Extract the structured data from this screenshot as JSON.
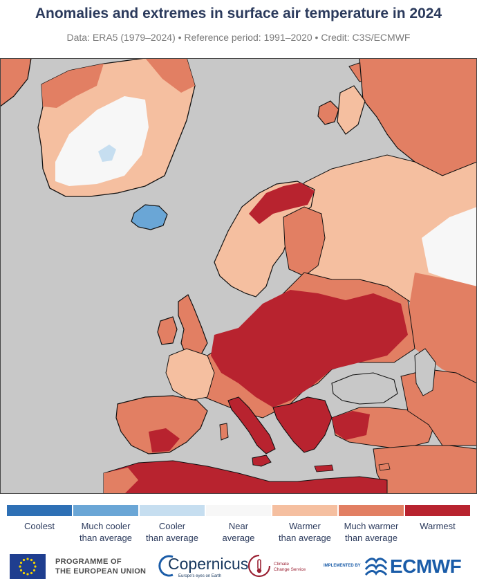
{
  "title": "Anomalies and extremes in surface air temperature in 2024",
  "subtitle": "Data: ERA5 (1979–2024) • Reference period: 1991–2020 • Credit: C3S/ECMWF",
  "legend": [
    {
      "label_line1": "Coolest",
      "label_line2": "",
      "color": "#2e70b5"
    },
    {
      "label_line1": "Much cooler",
      "label_line2": "than average",
      "color": "#6aa6d6"
    },
    {
      "label_line1": "Cooler",
      "label_line2": "than average",
      "color": "#c6def0"
    },
    {
      "label_line1": "Near",
      "label_line2": "average",
      "color": "#f7f7f7"
    },
    {
      "label_line1": "Warmer",
      "label_line2": "than average",
      "color": "#f5bfa0"
    },
    {
      "label_line1": "Much warmer",
      "label_line2": "than average",
      "color": "#e27f63"
    },
    {
      "label_line1": "Warmest",
      "label_line2": "",
      "color": "#b8232f"
    }
  ],
  "map": {
    "sea_color": "#c8c8c8",
    "coast_color": "#111111",
    "region_categories": [
      {
        "region": "Greenland interior",
        "category": "Near average"
      },
      {
        "region": "Greenland west coast",
        "category": "Much warmer than average"
      },
      {
        "region": "Greenland east coast",
        "category": "Warmer than average"
      },
      {
        "region": "Iceland",
        "category": "Much cooler than average"
      },
      {
        "region": "Svalbard",
        "category": "Much warmer than average"
      },
      {
        "region": "British Isles",
        "category": "Much warmer than average"
      },
      {
        "region": "Scandinavia",
        "category": "Warmer than average"
      },
      {
        "region": "Northern Finland / Norway",
        "category": "Warmest"
      },
      {
        "region": "Iberian Peninsula",
        "category": "Much warmer than average"
      },
      {
        "region": "Central and Eastern Europe",
        "category": "Warmest"
      },
      {
        "region": "Balkans and Turkey",
        "category": "Warmest"
      },
      {
        "region": "Western Russia",
        "category": "Warmer than average"
      },
      {
        "region": "Ural region",
        "category": "Near average"
      },
      {
        "region": "North Africa",
        "category": "Warmest"
      },
      {
        "region": "Middle East",
        "category": "Much warmer than average"
      }
    ]
  },
  "footer": {
    "eu_line1": "PROGRAMME OF",
    "eu_line2": "THE EUROPEAN UNION",
    "copernicus_word": "Copernicus",
    "copernicus_tag": "Europe's eyes on Earth",
    "ccs_line1": "Climate",
    "ccs_line2": "Change Service",
    "implemented_by": "IMPLEMENTED BY",
    "ecmwf": "ECMWF"
  }
}
